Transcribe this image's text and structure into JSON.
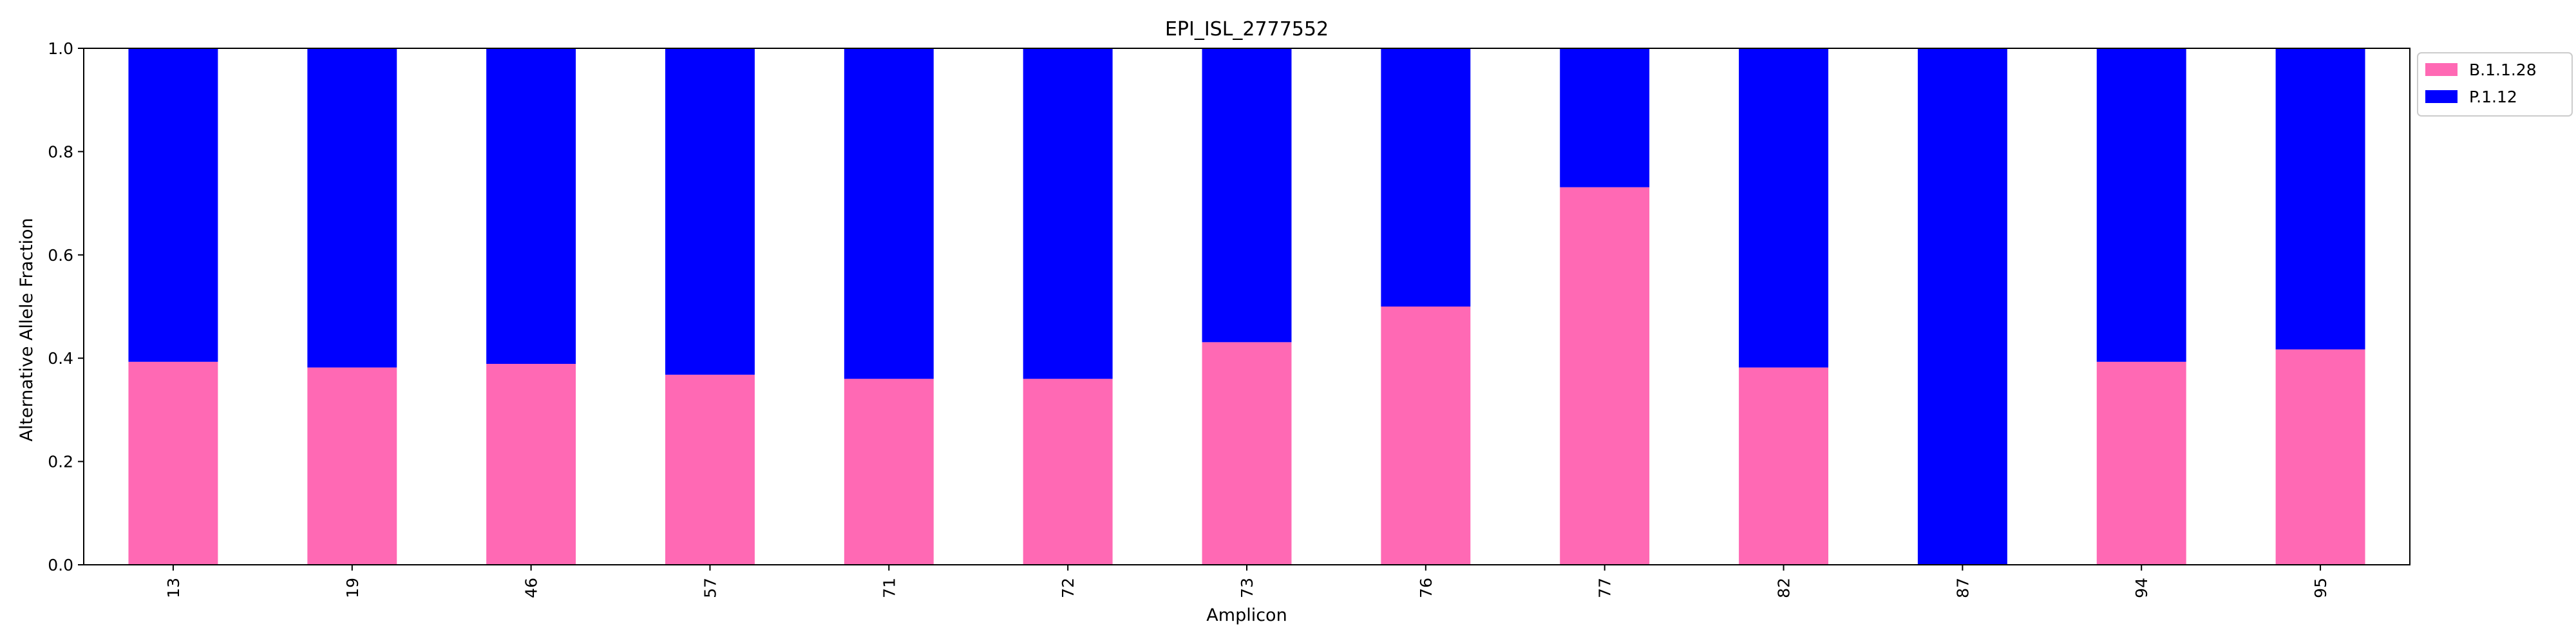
{
  "chart_data": {
    "type": "bar",
    "stacked": true,
    "title": "EPI_ISL_2777552",
    "xlabel": "Amplicon",
    "ylabel": "Alternative Allele Fraction",
    "ylim": [
      0,
      1.0
    ],
    "yticks": [
      "0.0",
      "0.2",
      "0.4",
      "0.6",
      "0.8",
      "1.0"
    ],
    "grid": false,
    "legend_position": "outside-top-right",
    "categories": [
      "13",
      "19",
      "46",
      "57",
      "71",
      "72",
      "73",
      "76",
      "77",
      "82",
      "87",
      "94",
      "95"
    ],
    "series": [
      {
        "name": "B.1.1.28",
        "color": "#ff69b4",
        "values": [
          0.393,
          0.382,
          0.389,
          0.368,
          0.36,
          0.36,
          0.431,
          0.5,
          0.731,
          0.382,
          0.0,
          0.393,
          0.417
        ]
      },
      {
        "name": "P.1.12",
        "color": "#0000ff",
        "values": [
          0.607,
          0.618,
          0.611,
          0.632,
          0.64,
          0.64,
          0.569,
          0.5,
          0.269,
          0.618,
          1.0,
          0.607,
          0.583
        ]
      }
    ]
  }
}
